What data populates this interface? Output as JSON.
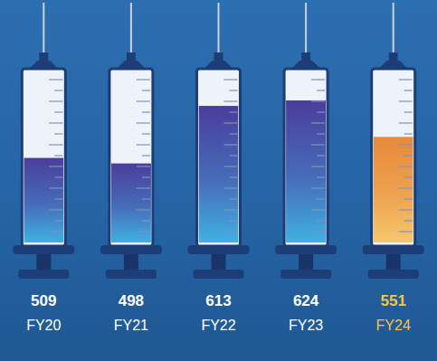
{
  "chart_data": {
    "type": "bar",
    "categories": [
      "FY20",
      "FY21",
      "FY22",
      "FY23",
      "FY24"
    ],
    "values": [
      509,
      498,
      613,
      624,
      551
    ],
    "ylim": [
      340,
      680
    ],
    "colors": [
      "#4a3d9c",
      "#4a3d9c",
      "#4a3d9c",
      "#4a3d9c",
      "#e8893a"
    ],
    "data_labels": true,
    "tick_labels": false
  }
}
